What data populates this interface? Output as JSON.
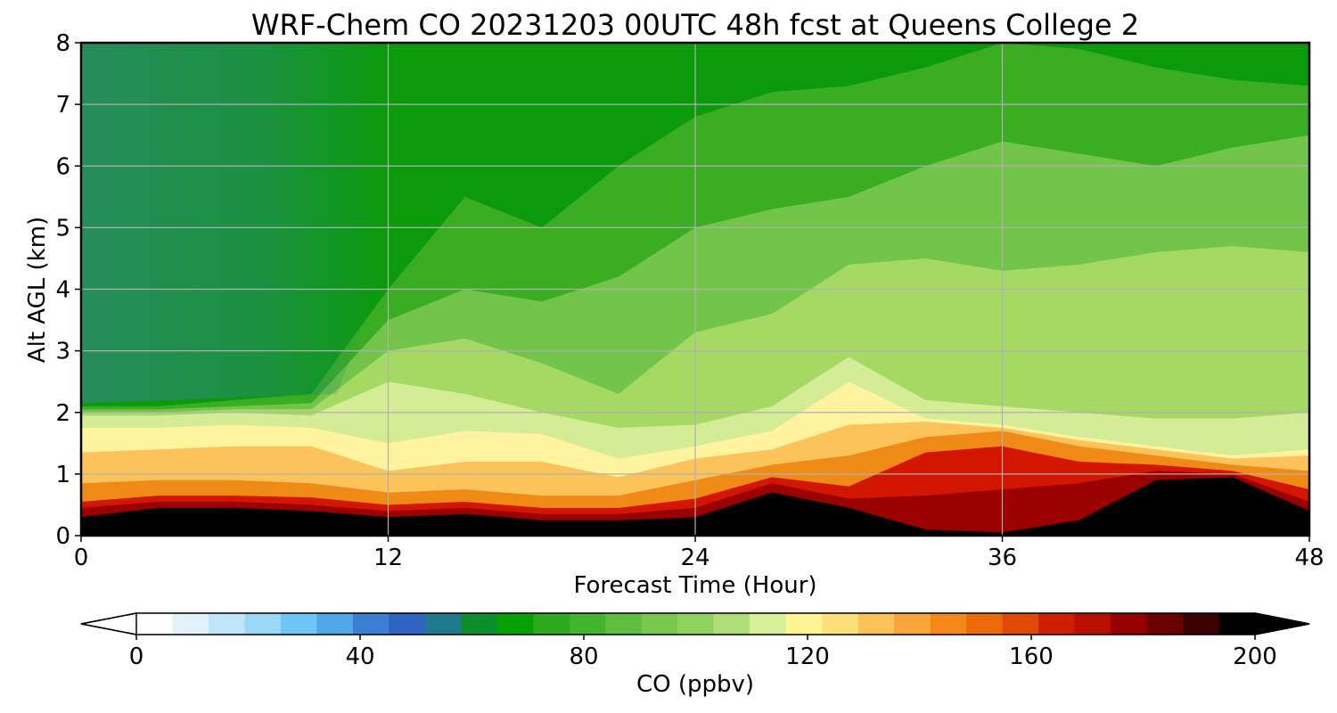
{
  "chart_data": {
    "type": "heatmap",
    "title": "WRF-Chem CO  20231203 00UTC 48h fcst at Queens College 2",
    "xlabel": "Forecast Time (Hour)",
    "ylabel": "Alt AGL (km)",
    "xlim": [
      0,
      48
    ],
    "ylim": [
      0,
      8
    ],
    "x_ticks": [
      "0",
      "12",
      "24",
      "36",
      "48"
    ],
    "y_ticks": [
      "0",
      "1",
      "2",
      "3",
      "4",
      "5",
      "6",
      "7",
      "8"
    ],
    "grid": true,
    "colorbar": {
      "label": "CO  (ppbv)",
      "range": [
        0,
        200
      ],
      "ticks": [
        "0",
        "40",
        "80",
        "120",
        "160",
        "200"
      ],
      "extend": "both",
      "orientation": "horizontal",
      "colors": [
        "#ffffff",
        "#e0f3fb",
        "#bfe6f8",
        "#9ad8f5",
        "#6dc6f3",
        "#4fa8e8",
        "#3a7fd4",
        "#2f63c2",
        "#1f7a8c",
        "#0c8f2a",
        "#06a000",
        "#2bab1b",
        "#44b32e",
        "#5fbd3f",
        "#78c84d",
        "#90d25f",
        "#b0df79",
        "#d7ef97",
        "#fff494",
        "#fde07a",
        "#fbc356",
        "#f9a53a",
        "#f58618",
        "#ee6a09",
        "#e04a04",
        "#d01e00",
        "#b80f00",
        "#960000",
        "#6a0000",
        "#3c0000",
        "#000000"
      ]
    },
    "time_hours": [
      0,
      3,
      6,
      9,
      12,
      15,
      18,
      21,
      24,
      27,
      30,
      33,
      36,
      39,
      42,
      45,
      48
    ],
    "layers": [
      {
        "name": "black",
        "color": "#000000",
        "top_km": [
          0.3,
          0.45,
          0.45,
          0.4,
          0.3,
          0.35,
          0.25,
          0.25,
          0.3,
          0.7,
          0.45,
          0.1,
          0.05,
          0.25,
          0.9,
          0.95,
          0.4
        ]
      },
      {
        "name": "dark-red",
        "color": "#9a0000",
        "top_km": [
          0.45,
          0.55,
          0.55,
          0.5,
          0.4,
          0.45,
          0.35,
          0.35,
          0.45,
          0.85,
          0.6,
          0.65,
          0.75,
          0.85,
          1.05,
          1.0,
          0.55
        ]
      },
      {
        "name": "red",
        "color": "#d21600",
        "top_km": [
          0.55,
          0.65,
          0.65,
          0.62,
          0.5,
          0.55,
          0.45,
          0.45,
          0.6,
          0.95,
          0.8,
          1.35,
          1.45,
          1.2,
          1.15,
          1.05,
          0.75
        ]
      },
      {
        "name": "orange",
        "color": "#f08a16",
        "top_km": [
          0.85,
          0.9,
          0.9,
          0.85,
          0.7,
          0.75,
          0.65,
          0.65,
          0.9,
          1.15,
          1.3,
          1.6,
          1.7,
          1.45,
          1.3,
          1.15,
          1.05
        ]
      },
      {
        "name": "light-orange",
        "color": "#fbc35a",
        "top_km": [
          1.35,
          1.4,
          1.45,
          1.45,
          1.05,
          1.2,
          1.2,
          0.95,
          1.25,
          1.4,
          1.8,
          1.85,
          1.75,
          1.55,
          1.4,
          1.25,
          1.3
        ]
      },
      {
        "name": "pale-yellow",
        "color": "#fff3a0",
        "top_km": [
          1.75,
          1.75,
          1.8,
          1.75,
          1.5,
          1.7,
          1.65,
          1.25,
          1.45,
          1.7,
          2.5,
          1.9,
          1.8,
          1.6,
          1.45,
          1.3,
          1.4
        ]
      },
      {
        "name": "yellow-green",
        "color": "#d4ec96",
        "top_km": [
          1.95,
          1.95,
          2.0,
          1.95,
          2.5,
          2.3,
          2.0,
          1.75,
          1.8,
          2.1,
          2.9,
          2.2,
          2.1,
          2.0,
          1.9,
          1.9,
          2.0
        ]
      },
      {
        "name": "light-green",
        "color": "#a6d964",
        "top_km": [
          2.0,
          2.0,
          2.05,
          2.05,
          3.0,
          3.2,
          2.8,
          2.3,
          3.3,
          3.6,
          4.4,
          4.5,
          4.3,
          4.4,
          4.6,
          4.7,
          4.6
        ]
      },
      {
        "name": "mid-green",
        "color": "#72c44a",
        "top_km": [
          2.05,
          2.05,
          2.1,
          2.15,
          3.5,
          4.0,
          3.8,
          4.2,
          5.0,
          5.3,
          5.5,
          6.0,
          6.4,
          6.2,
          6.0,
          6.3,
          6.5
        ]
      },
      {
        "name": "green",
        "color": "#3aad22",
        "top_km": [
          2.1,
          2.1,
          2.2,
          2.3,
          4.0,
          5.5,
          5.0,
          6.0,
          6.8,
          7.2,
          7.3,
          7.6,
          8.0,
          7.9,
          7.6,
          7.4,
          7.3
        ]
      },
      {
        "name": "deep-green",
        "color": "#0a9a0c",
        "top_km": [
          8,
          8,
          8,
          8,
          8,
          8,
          8,
          8,
          8,
          8,
          8,
          8,
          8,
          8,
          8,
          8,
          8
        ]
      }
    ],
    "teal_region_color": "#2a8a6a"
  }
}
